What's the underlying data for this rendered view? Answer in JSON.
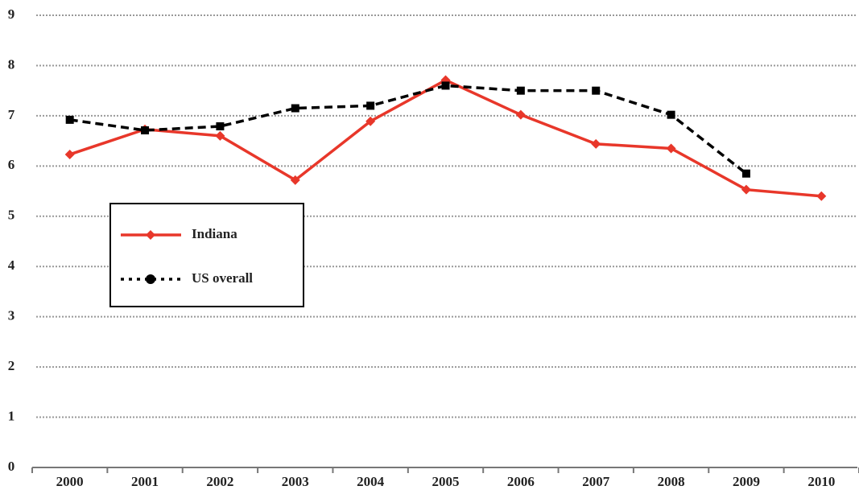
{
  "chart_data": {
    "type": "line",
    "categories": [
      "2000",
      "2001",
      "2002",
      "2003",
      "2004",
      "2005",
      "2006",
      "2007",
      "2008",
      "2009",
      "2010"
    ],
    "series": [
      {
        "name": "Indiana",
        "color": "#e8372a",
        "values": [
          6.23,
          6.73,
          6.6,
          5.72,
          6.89,
          7.71,
          7.02,
          6.44,
          6.35,
          5.53,
          5.4
        ]
      },
      {
        "name": "US overall",
        "color": "#000000",
        "values": [
          6.92,
          6.71,
          6.79,
          7.15,
          7.2,
          7.6,
          7.5,
          7.5,
          7.02,
          5.85,
          null
        ]
      }
    ],
    "ylim": [
      0,
      9
    ],
    "yticks": [
      0,
      1,
      2,
      3,
      4,
      5,
      6,
      7,
      8,
      9
    ],
    "grid": true
  }
}
